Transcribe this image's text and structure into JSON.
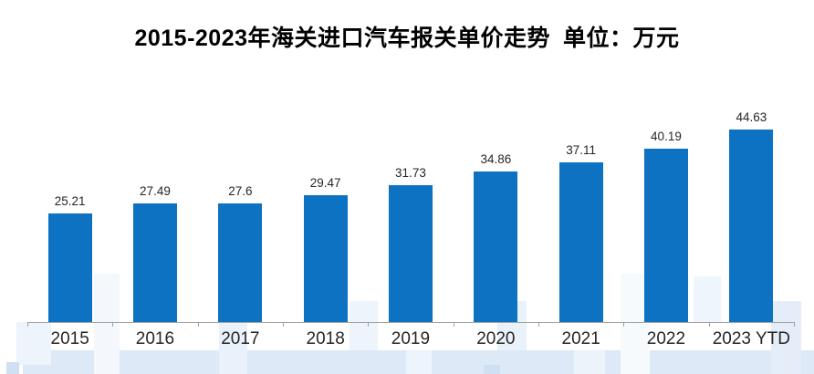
{
  "chart_data": {
    "type": "bar",
    "title": "2015-2023年海关进口汽车报关单价走势",
    "unit_label": "单位：万元",
    "categories": [
      "2015",
      "2016",
      "2017",
      "2018",
      "2019",
      "2020",
      "2021",
      "2022",
      "2023 YTD"
    ],
    "values": [
      25.21,
      27.49,
      27.6,
      29.47,
      31.73,
      34.86,
      37.11,
      40.19,
      44.63
    ],
    "value_labels": [
      "25.21",
      "27.49",
      "27.6",
      "29.47",
      "31.73",
      "34.86",
      "37.11",
      "40.19",
      "44.63"
    ],
    "xlabel": "",
    "ylabel": "万元",
    "ylim": [
      0,
      47
    ],
    "grid": false,
    "legend": false,
    "data_labels_shown": true,
    "bar_color": "#0D72C2",
    "axis_color": "#A0A0A0",
    "label_color": "#262626",
    "title_color": "#000000",
    "watermark_color": "#DDE9F6"
  }
}
